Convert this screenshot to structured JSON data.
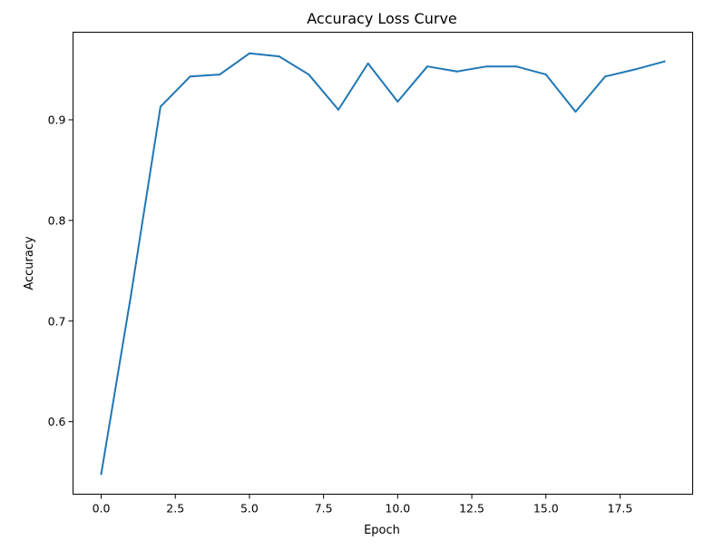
{
  "chart_data": {
    "type": "line",
    "title": "Accuracy Loss Curve",
    "xlabel": "Epoch",
    "ylabel": "Accuracy",
    "xlim": [
      -0.95,
      19.95
    ],
    "ylim": [
      0.528,
      0.987
    ],
    "xticks": [
      0.0,
      2.5,
      5.0,
      7.5,
      10.0,
      12.5,
      15.0,
      17.5
    ],
    "xtick_labels": [
      "0.0",
      "2.5",
      "5.0",
      "7.5",
      "10.0",
      "12.5",
      "15.0",
      "17.5"
    ],
    "yticks": [
      0.6,
      0.7,
      0.8,
      0.9
    ],
    "ytick_labels": [
      "0.6",
      "0.7",
      "0.8",
      "0.9"
    ],
    "grid": false,
    "series": [
      {
        "color": "#1f77b4",
        "x": [
          0,
          1,
          2,
          3,
          4,
          5,
          6,
          7,
          8,
          9,
          10,
          11,
          12,
          13,
          14,
          15,
          16,
          17,
          18,
          19
        ],
        "y": [
          0.548,
          0.725,
          0.913,
          0.943,
          0.945,
          0.966,
          0.963,
          0.945,
          0.91,
          0.956,
          0.918,
          0.953,
          0.948,
          0.953,
          0.953,
          0.945,
          0.908,
          0.943,
          0.95,
          0.958
        ]
      }
    ]
  }
}
